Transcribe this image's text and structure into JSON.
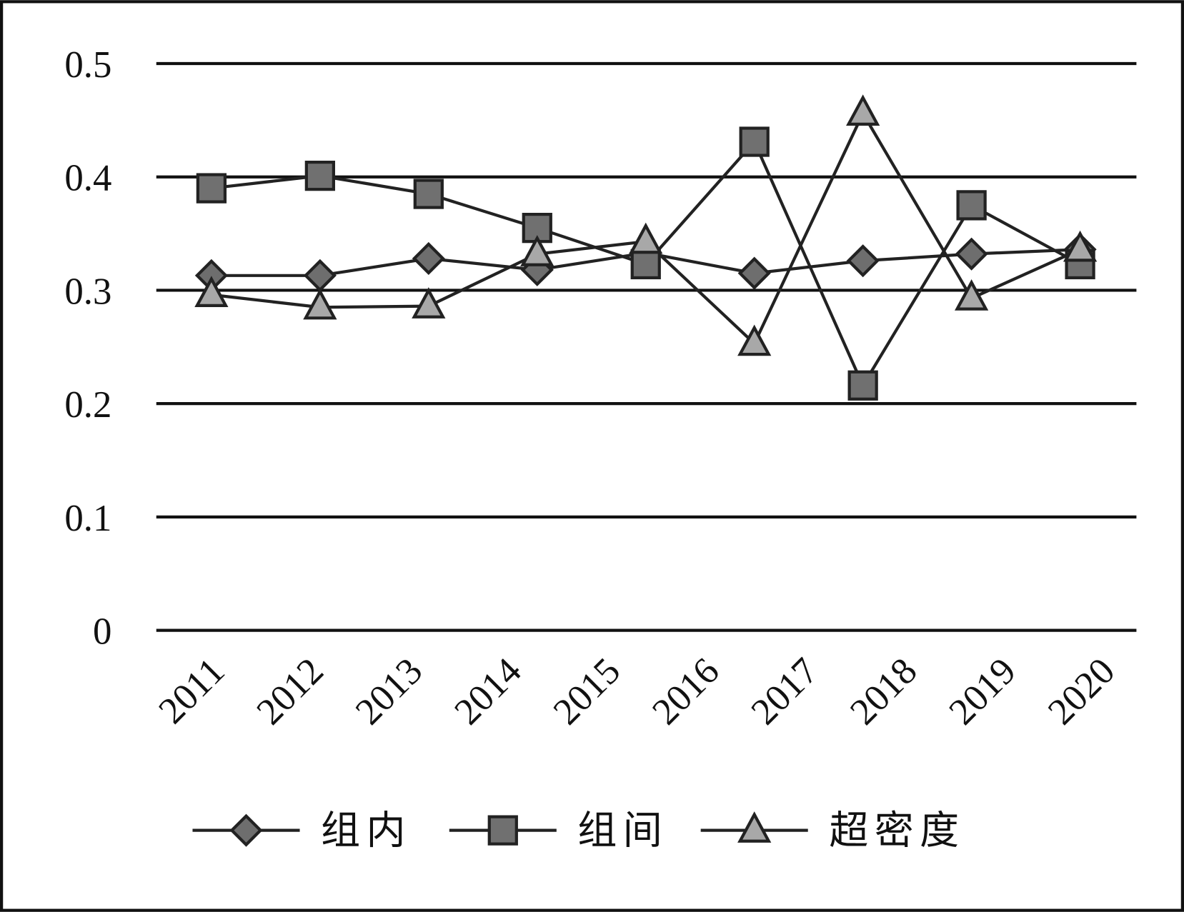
{
  "chart_data": {
    "type": "line",
    "categories": [
      "2011",
      "2012",
      "2013",
      "2014",
      "2015",
      "2016",
      "2017",
      "2018",
      "2019",
      "2020"
    ],
    "series": [
      {
        "name": "组内",
        "color": "#6e6e6e",
        "marker": "diamond",
        "values": [
          0.313,
          0.313,
          0.328,
          0.318,
          0.333,
          0.315,
          0.326,
          0.332,
          0.336,
          null
        ]
      },
      {
        "name": "组间",
        "color": "#707070",
        "marker": "square",
        "values": [
          0.39,
          0.401,
          0.385,
          0.355,
          0.323,
          0.431,
          0.216,
          0.375,
          0.323,
          null
        ]
      },
      {
        "name": "超密度",
        "color": "#a8a8a8",
        "marker": "triangle",
        "values": [
          0.296,
          0.285,
          0.286,
          0.332,
          0.343,
          0.253,
          0.456,
          0.293,
          0.336,
          null
        ]
      }
    ],
    "ylim": [
      0,
      0.5
    ],
    "yticks": [
      0,
      0.1,
      0.2,
      0.3,
      0.4,
      0.5
    ],
    "grid": true,
    "legend": "bottom"
  }
}
